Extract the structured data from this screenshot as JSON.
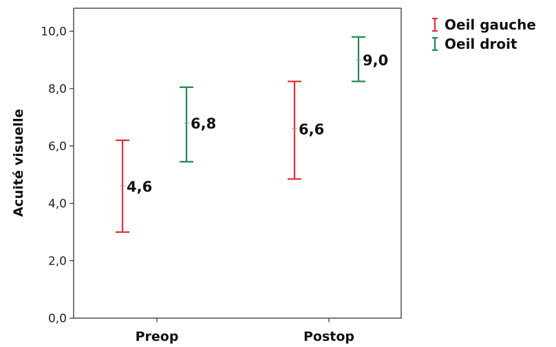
{
  "chart_data": {
    "type": "errorbar",
    "xlabel": "",
    "ylabel": "Acuité visuelle",
    "categories": [
      "Preop",
      "Postop"
    ],
    "ylim": [
      0,
      10.8
    ],
    "yticks": [
      "0,0",
      "2,0",
      "4,0",
      "6,0",
      "8,0",
      "10,0"
    ],
    "ytick_values": [
      0,
      2,
      4,
      6,
      8,
      10
    ],
    "grid": false,
    "legend_position": "top-right",
    "series": [
      {
        "name": "Oeil gauche",
        "color": "#e0303a",
        "mean": [
          4.6,
          6.6
        ],
        "lower": [
          3.0,
          4.85
        ],
        "upper": [
          6.2,
          8.25
        ],
        "labels": [
          "4,6",
          "6,6"
        ]
      },
      {
        "name": "Oeil droit",
        "color": "#1f8a4c",
        "mean": [
          6.8,
          9.0
        ],
        "lower": [
          5.45,
          8.25
        ],
        "upper": [
          8.05,
          9.8
        ],
        "labels": [
          "6,8",
          "9,0"
        ]
      }
    ]
  }
}
